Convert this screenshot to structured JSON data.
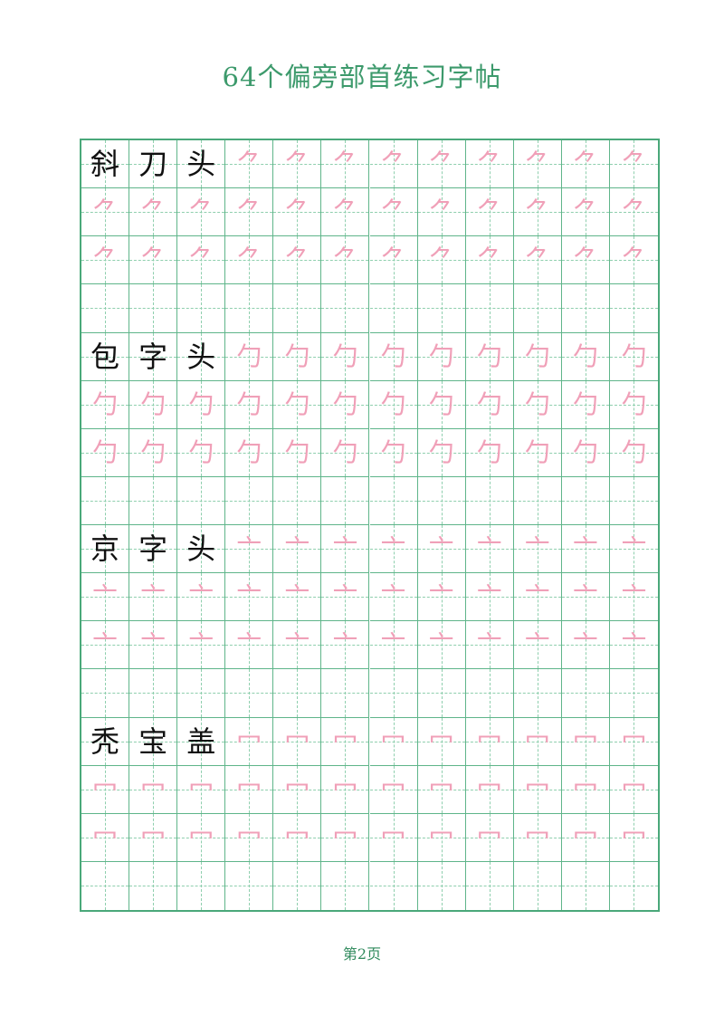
{
  "title": "64个偏旁部首练习字帖",
  "footer": "第2页",
  "colors": {
    "title": "#3d9a6c",
    "grid": "#4aa87a",
    "trace": "#f0a0b8",
    "example": "#111111"
  },
  "sections": [
    {
      "examples": [
        "斜",
        "刀",
        "头"
      ],
      "radical": "⺈"
    },
    {
      "examples": [
        "包",
        "字",
        "头"
      ],
      "radical": "勹"
    },
    {
      "examples": [
        "京",
        "字",
        "头"
      ],
      "radical": "亠"
    },
    {
      "examples": [
        "秃",
        "宝",
        "盖"
      ],
      "radical": "冖"
    }
  ]
}
